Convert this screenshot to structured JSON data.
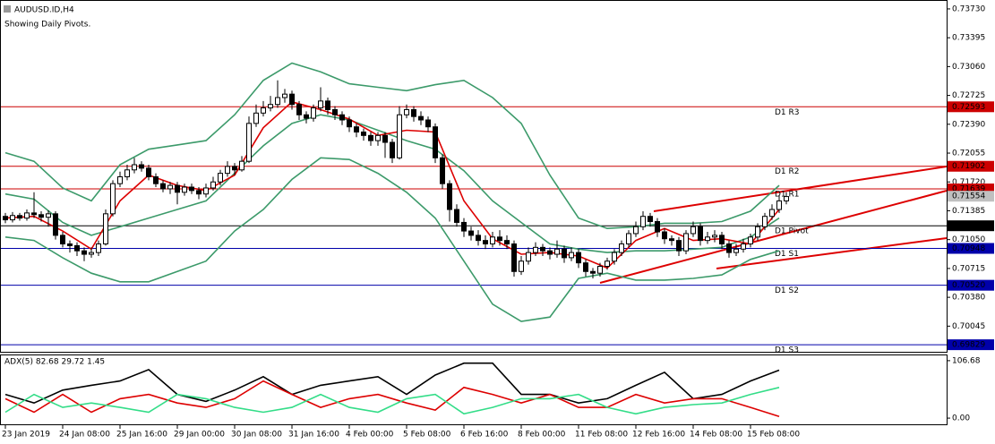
{
  "chart_data": [
    {
      "type": "candlestick",
      "title": "AUDUSD.ID,H4",
      "subtitle": "Showing Daily Pivots.",
      "open": [
        0.7132,
        0.7128,
        0.7133,
        0.713,
        0.7136,
        0.7134,
        0.7131,
        0.7135,
        0.711,
        0.71,
        0.7098,
        0.7092,
        0.7088,
        0.709,
        0.71,
        0.7135,
        0.717,
        0.7178,
        0.7186,
        0.7192,
        0.7188,
        0.7178,
        0.717,
        0.7164,
        0.7168,
        0.716,
        0.7166,
        0.7162,
        0.7158,
        0.7165,
        0.7172,
        0.7182,
        0.719,
        0.7186,
        0.7196,
        0.724,
        0.7252,
        0.7258,
        0.7262,
        0.727,
        0.7274,
        0.7262,
        0.725,
        0.7246,
        0.7258,
        0.7266,
        0.7256,
        0.725,
        0.7244,
        0.7236,
        0.723,
        0.7226,
        0.722,
        0.7226,
        0.7218,
        0.72,
        0.725,
        0.7256,
        0.7248,
        0.7244,
        0.7236,
        0.72,
        0.717,
        0.714,
        0.7125,
        0.7115,
        0.711,
        0.7104,
        0.71,
        0.7108,
        0.7104,
        0.71,
        0.7068,
        0.708,
        0.709,
        0.7096,
        0.7092,
        0.7088,
        0.7094,
        0.7084,
        0.709,
        0.7078,
        0.7068,
        0.7066,
        0.7074,
        0.708,
        0.709,
        0.71,
        0.7112,
        0.712,
        0.7132,
        0.7126,
        0.7114,
        0.7106,
        0.7104,
        0.7092,
        0.7112,
        0.712,
        0.7104,
        0.7108,
        0.711,
        0.71,
        0.709,
        0.7094,
        0.71,
        0.7108,
        0.712,
        0.7132,
        0.714,
        0.715
      ],
      "high": [
        0.7136,
        0.7137,
        0.7136,
        0.714,
        0.716,
        0.7138,
        0.7139,
        0.7138,
        0.7114,
        0.7104,
        0.7102,
        0.7096,
        0.7096,
        0.7104,
        0.714,
        0.7174,
        0.7184,
        0.7192,
        0.72,
        0.7196,
        0.7192,
        0.7182,
        0.7174,
        0.7172,
        0.7172,
        0.717,
        0.717,
        0.7166,
        0.717,
        0.7178,
        0.7186,
        0.7196,
        0.7194,
        0.7202,
        0.7248,
        0.7262,
        0.7266,
        0.7272,
        0.729,
        0.728,
        0.7278,
        0.7266,
        0.7254,
        0.7262,
        0.7282,
        0.727,
        0.726,
        0.7254,
        0.7248,
        0.724,
        0.7234,
        0.723,
        0.723,
        0.723,
        0.7222,
        0.726,
        0.7262,
        0.726,
        0.7254,
        0.7248,
        0.724,
        0.7204,
        0.7174,
        0.7146,
        0.713,
        0.712,
        0.7116,
        0.711,
        0.7114,
        0.7116,
        0.711,
        0.7104,
        0.7086,
        0.7096,
        0.7102,
        0.71,
        0.7096,
        0.7104,
        0.7098,
        0.7096,
        0.7094,
        0.7082,
        0.7072,
        0.7078,
        0.7084,
        0.7094,
        0.7104,
        0.7116,
        0.7126,
        0.7138,
        0.7136,
        0.713,
        0.7118,
        0.711,
        0.7108,
        0.7116,
        0.7126,
        0.7124,
        0.7114,
        0.7116,
        0.7114,
        0.7104,
        0.71,
        0.7106,
        0.7112,
        0.7124,
        0.7136,
        0.7146,
        0.7156,
        0.716
      ],
      "low": [
        0.7124,
        0.7125,
        0.7127,
        0.7127,
        0.713,
        0.7126,
        0.712,
        0.7105,
        0.7096,
        0.709,
        0.7086,
        0.708,
        0.7084,
        0.7086,
        0.7098,
        0.7132,
        0.7166,
        0.7174,
        0.7182,
        0.7184,
        0.7174,
        0.7166,
        0.716,
        0.7158,
        0.7146,
        0.7156,
        0.7158,
        0.7152,
        0.7154,
        0.7162,
        0.7168,
        0.7178,
        0.718,
        0.7184,
        0.7194,
        0.7236,
        0.7248,
        0.7254,
        0.7258,
        0.7264,
        0.7256,
        0.7244,
        0.724,
        0.7242,
        0.7254,
        0.725,
        0.7244,
        0.7238,
        0.723,
        0.7224,
        0.722,
        0.7214,
        0.7214,
        0.72,
        0.7194,
        0.7198,
        0.7246,
        0.7242,
        0.7238,
        0.723,
        0.7194,
        0.7164,
        0.7126,
        0.712,
        0.7108,
        0.7104,
        0.7098,
        0.7094,
        0.7096,
        0.7098,
        0.7094,
        0.7062,
        0.7064,
        0.7076,
        0.7086,
        0.7086,
        0.7082,
        0.7084,
        0.7078,
        0.708,
        0.7072,
        0.7062,
        0.706,
        0.7062,
        0.707,
        0.7076,
        0.7086,
        0.7096,
        0.7108,
        0.7116,
        0.712,
        0.7108,
        0.71,
        0.7098,
        0.7086,
        0.7088,
        0.7108,
        0.7098,
        0.71,
        0.7102,
        0.7094,
        0.7084,
        0.7086,
        0.709,
        0.7096,
        0.7104,
        0.7116,
        0.7128,
        0.7136,
        0.7146
      ],
      "close": [
        0.7128,
        0.7133,
        0.713,
        0.7136,
        0.7134,
        0.7131,
        0.7135,
        0.711,
        0.71,
        0.7098,
        0.7092,
        0.7088,
        0.709,
        0.71,
        0.7135,
        0.717,
        0.7178,
        0.7186,
        0.7192,
        0.7188,
        0.7178,
        0.717,
        0.7164,
        0.7168,
        0.716,
        0.7166,
        0.7162,
        0.7158,
        0.7165,
        0.7172,
        0.7182,
        0.719,
        0.7186,
        0.7196,
        0.724,
        0.7252,
        0.7258,
        0.7262,
        0.727,
        0.7274,
        0.7262,
        0.725,
        0.7246,
        0.7258,
        0.7266,
        0.7256,
        0.725,
        0.7244,
        0.7236,
        0.723,
        0.7226,
        0.722,
        0.7226,
        0.7218,
        0.72,
        0.725,
        0.7256,
        0.7248,
        0.7244,
        0.7236,
        0.72,
        0.717,
        0.714,
        0.7125,
        0.7115,
        0.711,
        0.7104,
        0.71,
        0.7108,
        0.7104,
        0.71,
        0.7068,
        0.708,
        0.709,
        0.7096,
        0.7092,
        0.7088,
        0.7094,
        0.7084,
        0.709,
        0.7078,
        0.7068,
        0.7066,
        0.7074,
        0.708,
        0.709,
        0.71,
        0.7112,
        0.712,
        0.7132,
        0.7126,
        0.7114,
        0.7106,
        0.7104,
        0.7092,
        0.7112,
        0.712,
        0.7104,
        0.7108,
        0.711,
        0.71,
        0.709,
        0.7094,
        0.71,
        0.7108,
        0.712,
        0.7132,
        0.714,
        0.715,
        0.7155
      ],
      "up_color": "#ffffff",
      "down_color": "#000000",
      "xlim": [
        -0.75,
        131.375
      ],
      "ylim": [
        0.69747,
        0.73823
      ],
      "yticks": [
        {
          "value": 0.7373,
          "label": "0.73730"
        },
        0.73395,
        {
          "value": 0.7306,
          "label": "0.73060"
        },
        0.72725,
        {
          "value": 0.7239,
          "label": "0.72390"
        },
        0.72055,
        {
          "value": 0.7172,
          "label": "0.71720"
        },
        0.71385,
        {
          "value": 0.7105,
          "label": "0.71050"
        },
        0.70715,
        {
          "value": 0.7038,
          "label": "0.70380"
        },
        0.70045
      ],
      "xticks": [
        {
          "value": 0,
          "label": "23 Jan 2019"
        },
        {
          "value": 8,
          "label": "24 Jan 08:00"
        },
        {
          "value": 16,
          "label": "25 Jan 16:00"
        },
        {
          "value": 24,
          "label": "29 Jan 00:00"
        },
        {
          "value": 32,
          "label": "30 Jan 08:00"
        },
        {
          "value": 40,
          "label": "31 Jan 16:00"
        },
        {
          "value": 48,
          "label": "4 Feb 00:00"
        },
        {
          "value": 56,
          "label": "5 Feb 08:00"
        },
        {
          "value": 64,
          "label": "6 Feb 16:00"
        },
        {
          "value": 72,
          "label": "8 Feb 00:00"
        },
        {
          "value": 80,
          "label": "11 Feb 08:00"
        },
        {
          "value": 88,
          "label": "12 Feb 16:00"
        },
        {
          "value": 96,
          "label": "14 Feb 08:00"
        },
        {
          "value": 104,
          "label": "15 Feb 08:00"
        }
      ],
      "series": [
        {
          "color": "#3c9a6a",
          "x": [
            0,
            4,
            8,
            12,
            16,
            20,
            24,
            28,
            32,
            36,
            40,
            44,
            48,
            52,
            56,
            60,
            64,
            68,
            72,
            76,
            80,
            84,
            88,
            92,
            96,
            100,
            104,
            108
          ],
          "values": [
            0.7206,
            0.7196,
            0.7165,
            0.715,
            0.7192,
            0.721,
            0.7215,
            0.722,
            0.725,
            0.729,
            0.731,
            0.73,
            0.7286,
            0.7282,
            0.7278,
            0.7285,
            0.729,
            0.727,
            0.724,
            0.718,
            0.713,
            0.7118,
            0.712,
            0.7124,
            0.7124,
            0.7126,
            0.7138,
            0.7168
          ]
        },
        {
          "color": "#3c9a6a",
          "x": [
            0,
            4,
            8,
            12,
            16,
            20,
            24,
            28,
            32,
            36,
            40,
            44,
            48,
            52,
            56,
            60,
            64,
            68,
            72,
            76,
            80,
            84,
            88,
            92,
            96,
            100,
            104,
            108
          ],
          "values": [
            0.7158,
            0.7152,
            0.7125,
            0.711,
            0.712,
            0.713,
            0.714,
            0.715,
            0.7182,
            0.7214,
            0.724,
            0.725,
            0.7244,
            0.7232,
            0.722,
            0.721,
            0.7185,
            0.715,
            0.7125,
            0.71,
            0.7094,
            0.709,
            0.7092,
            0.7092,
            0.7094,
            0.7096,
            0.7108,
            0.713
          ]
        },
        {
          "color": "#3c9a6a",
          "x": [
            0,
            4,
            8,
            12,
            16,
            20,
            24,
            28,
            32,
            36,
            40,
            44,
            48,
            52,
            56,
            60,
            64,
            68,
            72,
            76,
            80,
            84,
            88,
            92,
            96,
            100,
            104,
            108
          ],
          "values": [
            0.7108,
            0.7104,
            0.7084,
            0.7066,
            0.7056,
            0.7056,
            0.7068,
            0.708,
            0.7115,
            0.714,
            0.7175,
            0.72,
            0.7198,
            0.7182,
            0.716,
            0.713,
            0.708,
            0.703,
            0.701,
            0.7015,
            0.706,
            0.7066,
            0.7058,
            0.7058,
            0.706,
            0.7064,
            0.7082,
            0.7092
          ]
        },
        {
          "color": "#dd0000",
          "x": [
            0,
            4,
            8,
            12,
            16,
            20,
            24,
            28,
            32,
            36,
            40,
            44,
            48,
            52,
            56,
            60,
            64,
            68,
            72,
            76,
            80,
            84,
            88,
            92,
            96,
            100,
            104,
            108
          ],
          "values": [
            0.713,
            0.7132,
            0.7115,
            0.7094,
            0.715,
            0.718,
            0.7168,
            0.7162,
            0.718,
            0.7235,
            0.7265,
            0.7256,
            0.7245,
            0.7226,
            0.7232,
            0.723,
            0.715,
            0.7106,
            0.7088,
            0.709,
            0.7086,
            0.7072,
            0.7104,
            0.7118,
            0.7104,
            0.7106,
            0.71,
            0.714
          ]
        }
      ],
      "levels": [
        {
          "name": "D1 R3",
          "value": 0.72593,
          "value_label": "0.72593",
          "color": "#cc0000"
        },
        {
          "name": "D1 R2",
          "value": 0.71902,
          "value_label": "0.71902",
          "color": "#cc0000"
        },
        {
          "name": "D1 R1",
          "value": 0.71639,
          "value_label": "0.71639",
          "color": "#cc0000"
        },
        {
          "name": "D1 Pivot",
          "value": 0.71211,
          "value_label": "0.71211",
          "color": "#000000"
        },
        {
          "name": "D1 S1",
          "value": 0.70948,
          "value_label": "0.70948",
          "color": "#0000aa"
        },
        {
          "name": "D1 S2",
          "value": 0.7052,
          "value_label": "0.70520",
          "color": "#0000aa"
        },
        {
          "name": "D1 S3",
          "value": 0.69829,
          "value_label": "0.69829",
          "color": "#0000aa"
        }
      ],
      "last_price": 0.71554
    },
    {
      "type": "line",
      "title": "ADX(5) 82.68 29.72 1.45",
      "xlim": [
        -0.75,
        131.375
      ],
      "ylim": [
        -11.5,
        116.5
      ],
      "yticks": [
        106.68,
        {
          "value": 0,
          "label": "0.00"
        }
      ],
      "series": [
        {
          "color": "#000000",
          "x": [
            0,
            4,
            8,
            12,
            16,
            20,
            24,
            28,
            32,
            36,
            40,
            44,
            48,
            52,
            56,
            60,
            64,
            68,
            72,
            76,
            80,
            84,
            88,
            92,
            96,
            100,
            104,
            108
          ],
          "values": [
            44,
            28,
            52,
            61,
            69,
            90,
            44,
            31,
            52,
            77,
            44,
            61,
            69,
            77,
            44,
            80,
            102,
            102,
            44,
            44,
            28,
            36,
            61,
            85,
            36,
            44,
            69,
            89
          ]
        },
        {
          "color": "#dd0000",
          "x": [
            0,
            4,
            8,
            12,
            16,
            20,
            24,
            28,
            32,
            36,
            40,
            44,
            48,
            52,
            56,
            60,
            64,
            68,
            72,
            76,
            80,
            84,
            88,
            92,
            96,
            100,
            104,
            108
          ],
          "values": [
            36,
            11,
            44,
            11,
            36,
            44,
            28,
            20,
            36,
            69,
            44,
            20,
            36,
            44,
            28,
            15,
            57,
            44,
            28,
            44,
            20,
            20,
            44,
            28,
            36,
            36,
            20,
            3
          ]
        },
        {
          "color": "#33dd88",
          "x": [
            0,
            4,
            8,
            12,
            16,
            20,
            24,
            28,
            32,
            36,
            40,
            44,
            48,
            52,
            56,
            60,
            64,
            68,
            72,
            76,
            80,
            84,
            88,
            92,
            96,
            100,
            104,
            108
          ],
          "values": [
            11,
            44,
            20,
            28,
            20,
            11,
            44,
            36,
            20,
            11,
            20,
            44,
            20,
            11,
            36,
            44,
            8,
            20,
            36,
            36,
            44,
            20,
            8,
            20,
            25,
            28,
            44,
            57
          ]
        }
      ]
    }
  ]
}
